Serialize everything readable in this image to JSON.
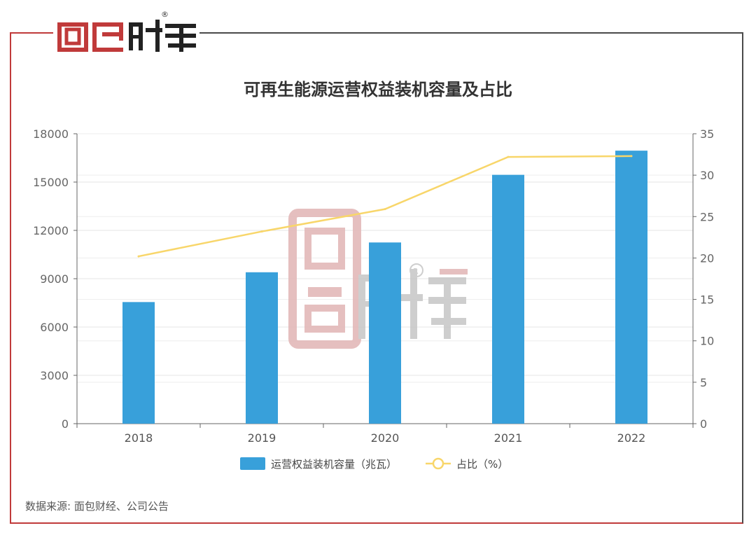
{
  "brand": {
    "logo_text": "面包财经",
    "registered_mark": "®"
  },
  "colors": {
    "bar": "#38a0da",
    "line": "#f8d66a",
    "frame_red": "#c03a3a",
    "frame_dark": "#4a4a4a",
    "watermark_red": "#e3b9b9",
    "watermark_gray": "#c9c9c9"
  },
  "source_note": "数据来源: 面包财经、公司公告",
  "chart_data": {
    "type": "bar+line",
    "title": "可再生能源运营权益装机容量及占比",
    "categories": [
      "2018",
      "2019",
      "2020",
      "2021",
      "2022"
    ],
    "series": [
      {
        "name": "运营权益装机容量（兆瓦）",
        "type": "bar",
        "axis": "left",
        "values": [
          7550,
          9400,
          11250,
          15450,
          16950
        ]
      },
      {
        "name": "占比（%）",
        "type": "line",
        "axis": "right",
        "values": [
          20.2,
          23.2,
          25.9,
          32.2,
          32.3
        ]
      }
    ],
    "y_left": {
      "min": 0,
      "max": 18000,
      "ticks": [
        "0",
        "3000",
        "6000",
        "9000",
        "12000",
        "15000",
        "18000"
      ]
    },
    "y_right": {
      "min": 0,
      "max": 35,
      "ticks": [
        "0",
        "5",
        "10",
        "15",
        "20",
        "25",
        "30",
        "35"
      ]
    },
    "grid": true,
    "legend_position": "bottom-center"
  }
}
